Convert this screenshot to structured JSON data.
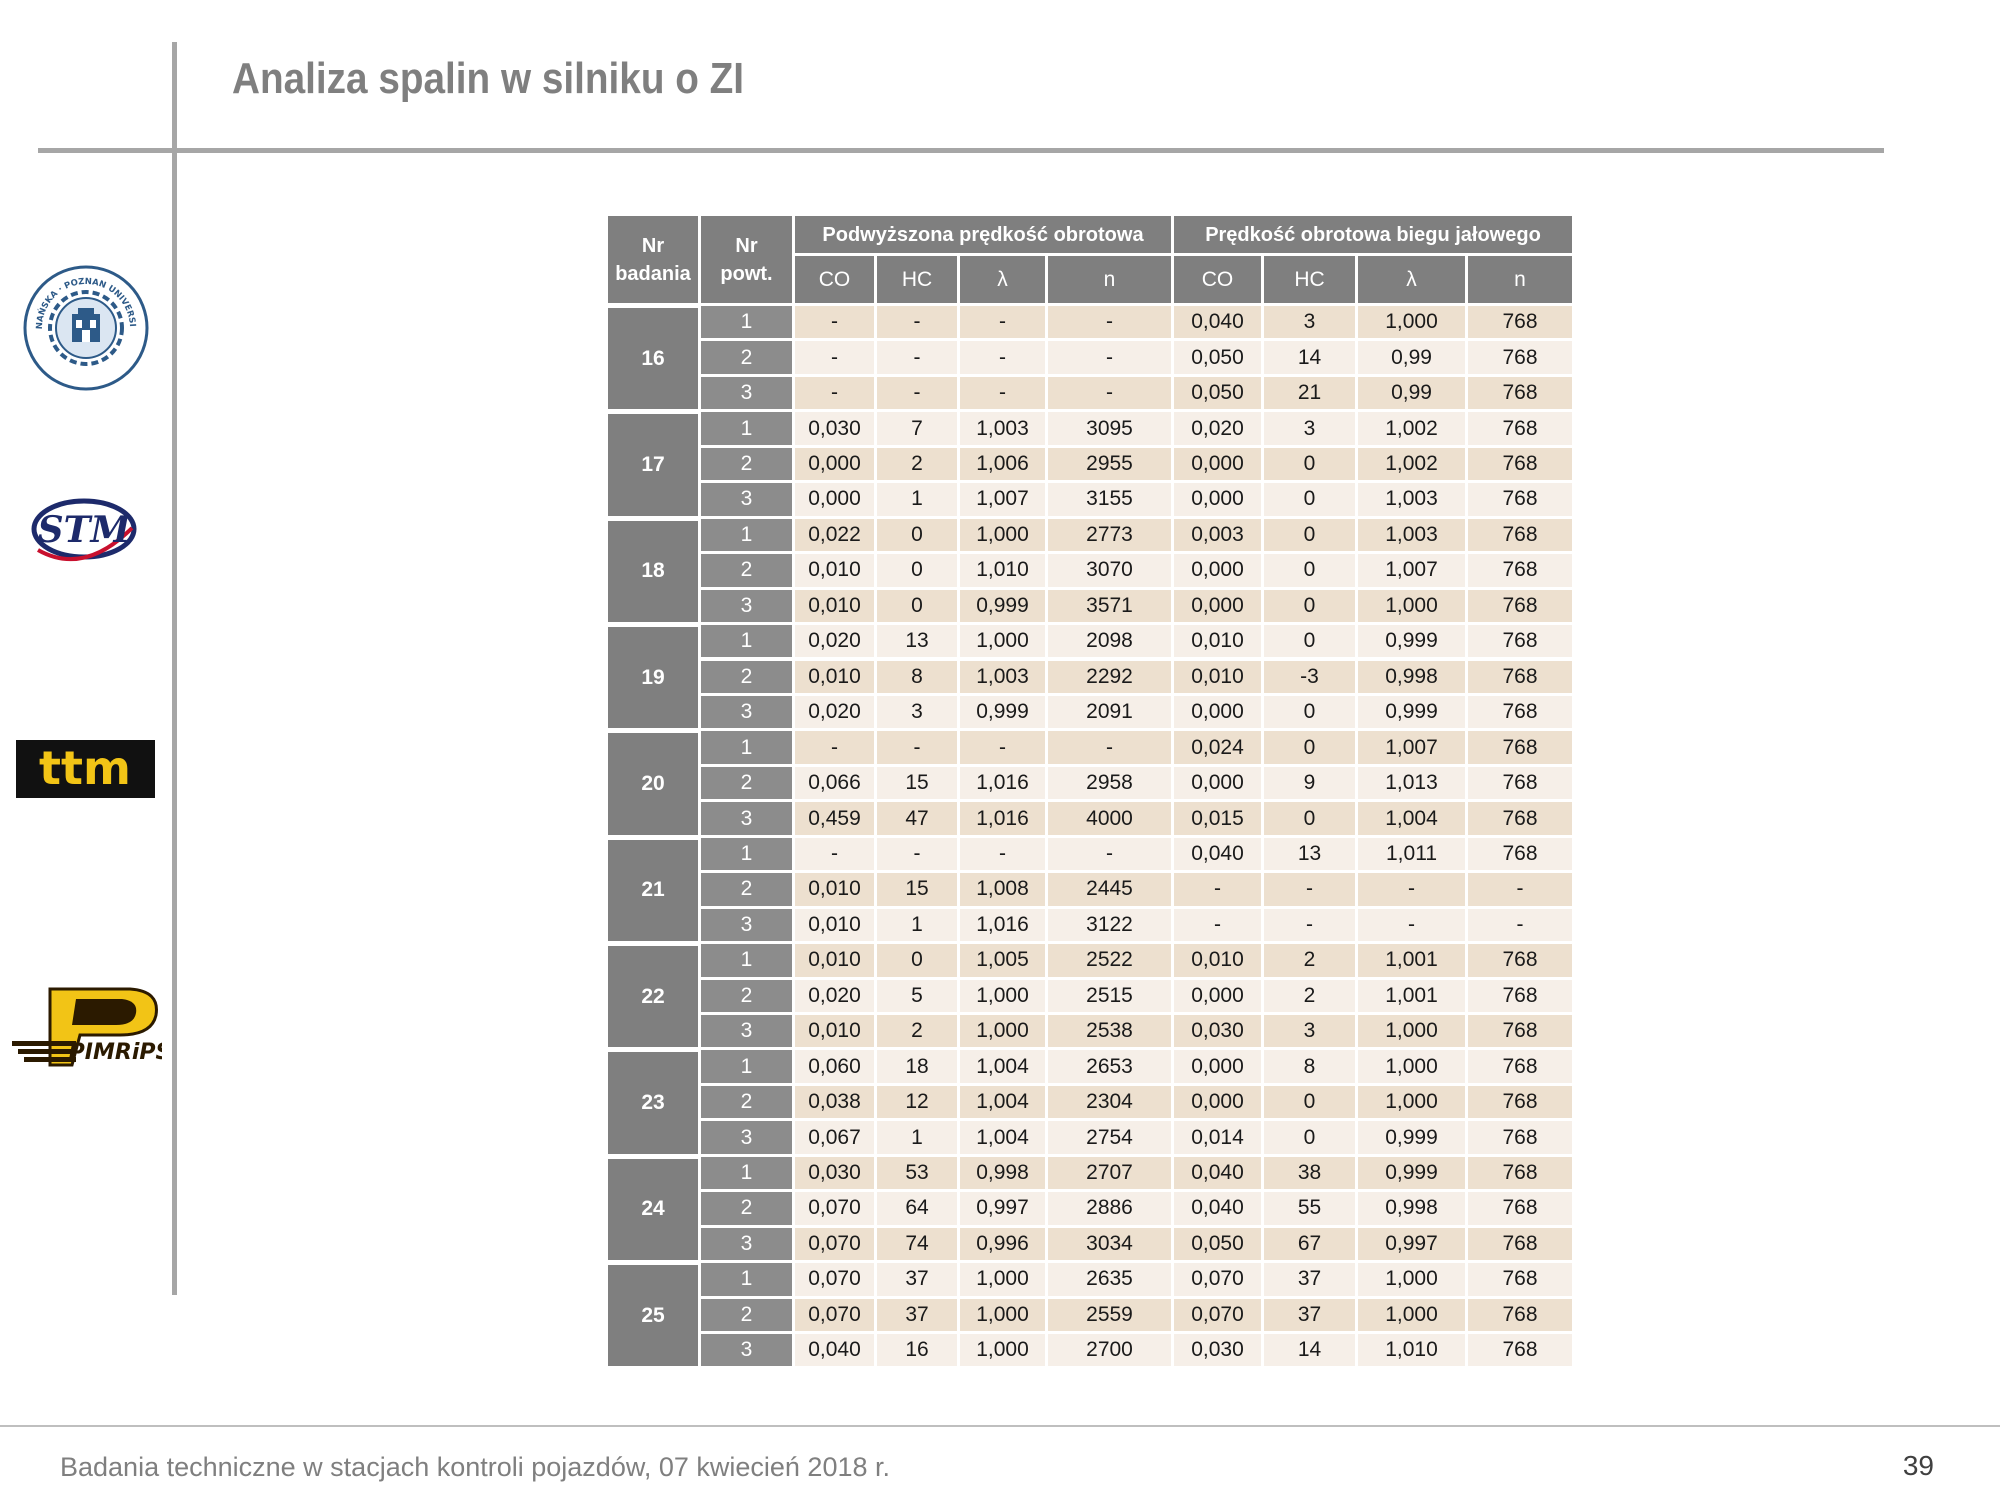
{
  "title": "Analiza spalin w silniku o ZI",
  "footer": "Badania techniczne w stacjach kontroli pojazdów, 07 kwiecień 2018 r.",
  "page_number": "39",
  "logos": [
    {
      "name": "politechnika-poznanska-logo",
      "text": "POLITECHNIKA POZNAŃSKA · POZNAN UNIVERSITY OF TECHNOLOGY"
    },
    {
      "name": "stm-logo",
      "text": "STM"
    },
    {
      "name": "ttm-logo",
      "text": "ttm"
    },
    {
      "name": "pimrips-logo",
      "text": "PIMRiPS"
    }
  ],
  "table": {
    "headers": {
      "nr_badania": "Nr badania",
      "nr_powt": "Nr powt.",
      "group1": "Podwyższona prędkość obrotowa",
      "group2": "Prędkość obrotowa biegu jałowego",
      "cols": [
        "CO",
        "HC",
        "λ",
        "n",
        "CO",
        "HC",
        "λ",
        "n"
      ]
    },
    "groups": [
      {
        "nr": "16",
        "rows": [
          [
            "1",
            "-",
            "-",
            "-",
            "-",
            "0,040",
            "3",
            "1,000",
            "768"
          ],
          [
            "2",
            "-",
            "-",
            "-",
            "-",
            "0,050",
            "14",
            "0,99",
            "768"
          ],
          [
            "3",
            "-",
            "-",
            "-",
            "-",
            "0,050",
            "21",
            "0,99",
            "768"
          ]
        ]
      },
      {
        "nr": "17",
        "rows": [
          [
            "1",
            "0,030",
            "7",
            "1,003",
            "3095",
            "0,020",
            "3",
            "1,002",
            "768"
          ],
          [
            "2",
            "0,000",
            "2",
            "1,006",
            "2955",
            "0,000",
            "0",
            "1,002",
            "768"
          ],
          [
            "3",
            "0,000",
            "1",
            "1,007",
            "3155",
            "0,000",
            "0",
            "1,003",
            "768"
          ]
        ]
      },
      {
        "nr": "18",
        "rows": [
          [
            "1",
            "0,022",
            "0",
            "1,000",
            "2773",
            "0,003",
            "0",
            "1,003",
            "768"
          ],
          [
            "2",
            "0,010",
            "0",
            "1,010",
            "3070",
            "0,000",
            "0",
            "1,007",
            "768"
          ],
          [
            "3",
            "0,010",
            "0",
            "0,999",
            "3571",
            "0,000",
            "0",
            "1,000",
            "768"
          ]
        ]
      },
      {
        "nr": "19",
        "rows": [
          [
            "1",
            "0,020",
            "13",
            "1,000",
            "2098",
            "0,010",
            "0",
            "0,999",
            "768"
          ],
          [
            "2",
            "0,010",
            "8",
            "1,003",
            "2292",
            "0,010",
            "-3",
            "0,998",
            "768"
          ],
          [
            "3",
            "0,020",
            "3",
            "0,999",
            "2091",
            "0,000",
            "0",
            "0,999",
            "768"
          ]
        ]
      },
      {
        "nr": "20",
        "rows": [
          [
            "1",
            "-",
            "-",
            "-",
            "-",
            "0,024",
            "0",
            "1,007",
            "768"
          ],
          [
            "2",
            "0,066",
            "15",
            "1,016",
            "2958",
            "0,000",
            "9",
            "1,013",
            "768"
          ],
          [
            "3",
            "0,459",
            "47",
            "1,016",
            "4000",
            "0,015",
            "0",
            "1,004",
            "768"
          ]
        ]
      },
      {
        "nr": "21",
        "rows": [
          [
            "1",
            "-",
            "-",
            "-",
            "-",
            "0,040",
            "13",
            "1,011",
            "768"
          ],
          [
            "2",
            "0,010",
            "15",
            "1,008",
            "2445",
            "-",
            "-",
            "-",
            "-"
          ],
          [
            "3",
            "0,010",
            "1",
            "1,016",
            "3122",
            "-",
            "-",
            "-",
            "-"
          ]
        ]
      },
      {
        "nr": "22",
        "rows": [
          [
            "1",
            "0,010",
            "0",
            "1,005",
            "2522",
            "0,010",
            "2",
            "1,001",
            "768"
          ],
          [
            "2",
            "0,020",
            "5",
            "1,000",
            "2515",
            "0,000",
            "2",
            "1,001",
            "768"
          ],
          [
            "3",
            "0,010",
            "2",
            "1,000",
            "2538",
            "0,030",
            "3",
            "1,000",
            "768"
          ]
        ]
      },
      {
        "nr": "23",
        "rows": [
          [
            "1",
            "0,060",
            "18",
            "1,004",
            "2653",
            "0,000",
            "8",
            "1,000",
            "768"
          ],
          [
            "2",
            "0,038",
            "12",
            "1,004",
            "2304",
            "0,000",
            "0",
            "1,000",
            "768"
          ],
          [
            "3",
            "0,067",
            "1",
            "1,004",
            "2754",
            "0,014",
            "0",
            "0,999",
            "768"
          ]
        ]
      },
      {
        "nr": "24",
        "rows": [
          [
            "1",
            "0,030",
            "53",
            "0,998",
            "2707",
            "0,040",
            "38",
            "0,999",
            "768"
          ],
          [
            "2",
            "0,070",
            "64",
            "0,997",
            "2886",
            "0,040",
            "55",
            "0,998",
            "768"
          ],
          [
            "3",
            "0,070",
            "74",
            "0,996",
            "3034",
            "0,050",
            "67",
            "0,997",
            "768"
          ]
        ]
      },
      {
        "nr": "25",
        "rows": [
          [
            "1",
            "0,070",
            "37",
            "1,000",
            "2635",
            "0,070",
            "37",
            "1,000",
            "768"
          ],
          [
            "2",
            "0,070",
            "37",
            "1,000",
            "2559",
            "0,070",
            "37",
            "1,000",
            "768"
          ],
          [
            "3",
            "0,040",
            "16",
            "1,000",
            "2700",
            "0,030",
            "14",
            "1,010",
            "768"
          ]
        ]
      }
    ]
  }
}
